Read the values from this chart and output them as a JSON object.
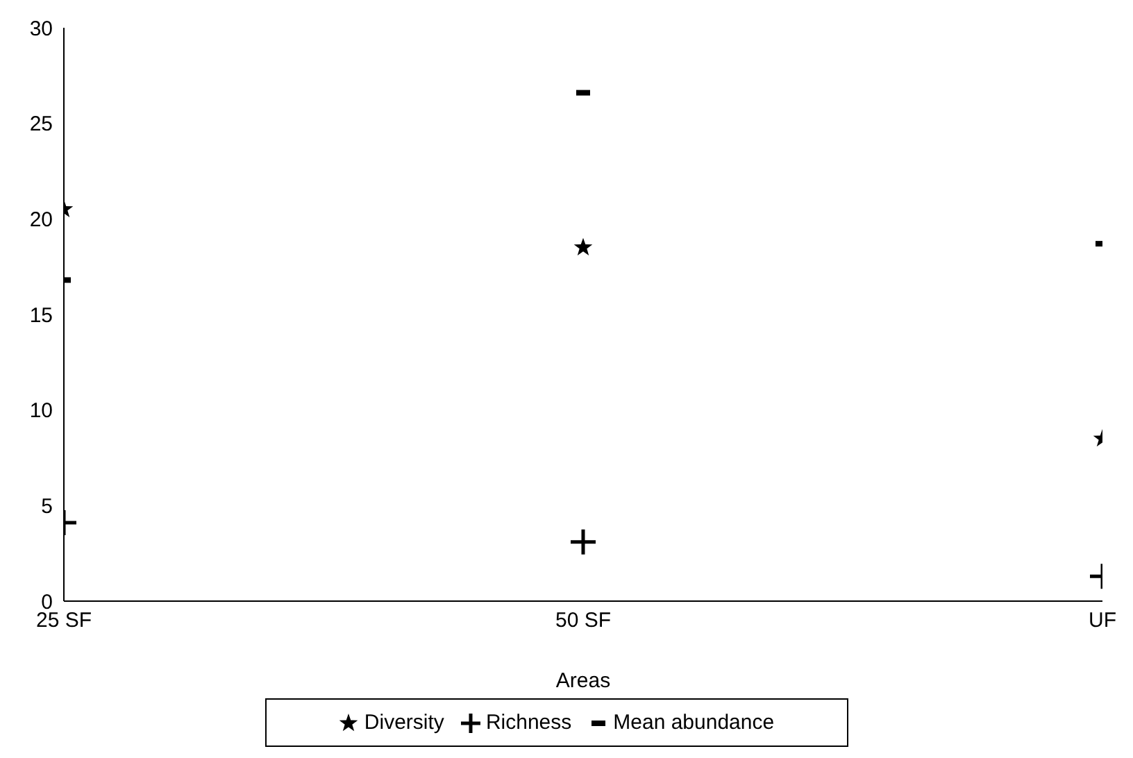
{
  "chart_data": {
    "type": "scatter",
    "xlabel": "Areas",
    "categories": [
      "25 SF",
      "50 SF",
      "UF"
    ],
    "series": [
      {
        "name": "Diversity",
        "color": "#000000",
        "marker": "star",
        "values": [
          20.5,
          18.5,
          8.5
        ]
      },
      {
        "name": "Richness",
        "color": "#000000",
        "marker": "cross",
        "values": [
          4.1,
          3.1,
          1.3
        ]
      },
      {
        "name": "Mean abundance",
        "color": "#000000",
        "values": [
          16.8,
          26.6,
          18.7
        ]
      }
    ],
    "ylim": [
      0,
      30
    ],
    "yticks": [
      0,
      5,
      10,
      15,
      20,
      25,
      30
    ],
    "grid": false,
    "legend": "bottom"
  }
}
